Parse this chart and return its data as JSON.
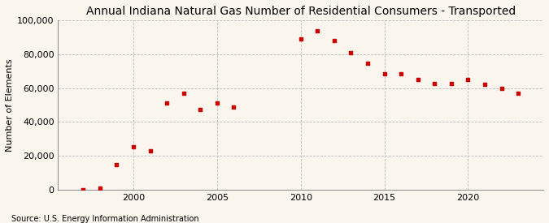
{
  "title": "Annual Indiana Natural Gas Number of Residential Consumers - Transported",
  "ylabel": "Number of Elements",
  "source": "Source: U.S. Energy Information Administration",
  "background_color": "#faf6ee",
  "marker_color": "#cc0000",
  "years": [
    1997,
    1998,
    1999,
    2000,
    2001,
    2002,
    2003,
    2004,
    2005,
    2006,
    2010,
    2011,
    2012,
    2013,
    2014,
    2015,
    2016,
    2017,
    2018,
    2019,
    2020,
    2021,
    2022,
    2023
  ],
  "values": [
    200,
    800,
    15000,
    25500,
    23000,
    51000,
    57000,
    47500,
    51000,
    49000,
    89000,
    93500,
    88000,
    81000,
    74500,
    68500,
    68500,
    65000,
    62500,
    62500,
    65000,
    62000,
    60000,
    57000
  ],
  "xlim": [
    1995.5,
    2024.5
  ],
  "ylim": [
    0,
    100000
  ],
  "yticks": [
    0,
    20000,
    40000,
    60000,
    80000,
    100000
  ],
  "xticks": [
    2000,
    2005,
    2010,
    2015,
    2020
  ],
  "grid_color": "#bbbbbb",
  "title_fontsize": 10,
  "label_fontsize": 8,
  "tick_fontsize": 8,
  "source_fontsize": 7
}
